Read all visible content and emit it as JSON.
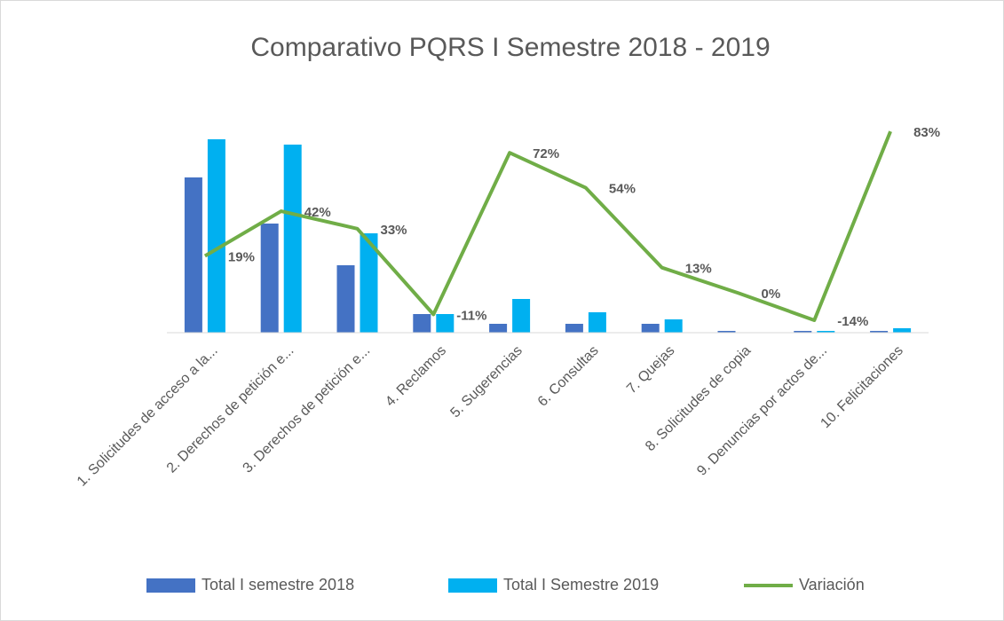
{
  "chart_data": {
    "type": "bar",
    "title": "Comparativo PQRS I Semestre 2018 - 2019",
    "categories": [
      "1. Solicitudes de acceso a la...",
      "2. Derechos de petición e...",
      "3. Derechos de petición e...",
      "4. Reclamos",
      "5. Sugerencias",
      "6. Consultas",
      "7. Quejas",
      "8. Solicitudes de copia",
      "9. Denuncias por actos de...",
      "10. Felicitaciones"
    ],
    "ylim": [
      0,
      230
    ],
    "y2lim": [
      -20.4,
      84.4
    ],
    "legend": "bottom",
    "series": [
      {
        "name": "Total I semestre 2018",
        "color": "#4472c4",
        "values": [
          175,
          123,
          76,
          21,
          10,
          10,
          10,
          2,
          2,
          2
        ]
      },
      {
        "name": "Total I Semestre 2019",
        "color": "#00b0f0",
        "values": [
          218,
          212,
          112,
          21,
          38,
          23,
          15,
          0,
          2,
          5
        ]
      },
      {
        "name": "Variación",
        "type": "line",
        "axis": "y2",
        "color": "#70ad47",
        "values": [
          19,
          42,
          33,
          -11,
          72,
          54,
          13,
          0,
          -14,
          83
        ],
        "value_labels": [
          "19%",
          "42%",
          "33%",
          "-11%",
          "72%",
          "54%",
          "13%",
          "0%",
          "-14%",
          "83%"
        ]
      }
    ]
  }
}
